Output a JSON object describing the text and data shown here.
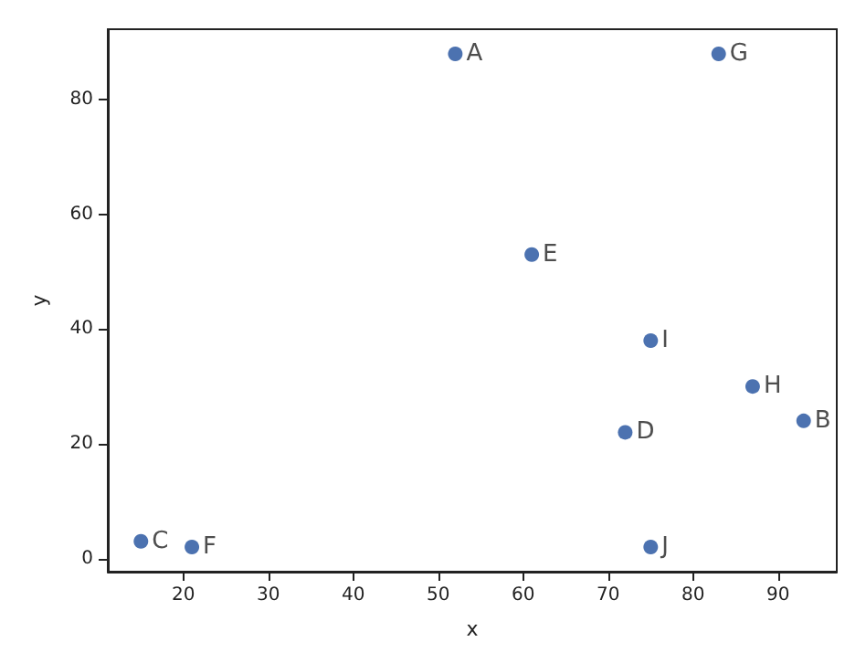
{
  "chart_data": {
    "type": "scatter",
    "xlabel": "x",
    "ylabel": "y",
    "x": [
      52,
      93,
      15,
      72,
      61,
      21,
      83,
      87,
      75,
      75
    ],
    "values": [
      88,
      24,
      3,
      22,
      53,
      2,
      88,
      30,
      38,
      2
    ],
    "color": "#4c72b0",
    "marker": "circle",
    "xlim": [
      11.1,
      96.9
    ],
    "xticks": [
      20,
      30,
      40,
      50,
      60,
      70,
      80,
      90
    ],
    "ylim": [
      -2.3,
      92.3
    ],
    "yticks": [
      0,
      20,
      40,
      60,
      80
    ],
    "annotations": [
      {
        "text": "A",
        "x": 52,
        "y": 88
      },
      {
        "text": "B",
        "x": 93,
        "y": 24
      },
      {
        "text": "C",
        "x": 15,
        "y": 3
      },
      {
        "text": "D",
        "x": 72,
        "y": 22
      },
      {
        "text": "E",
        "x": 61,
        "y": 53
      },
      {
        "text": "F",
        "x": 21,
        "y": 2
      },
      {
        "text": "G",
        "x": 83,
        "y": 88
      },
      {
        "text": "H",
        "x": 87,
        "y": 30
      },
      {
        "text": "I",
        "x": 75,
        "y": 38
      },
      {
        "text": "J",
        "x": 75,
        "y": 2
      }
    ]
  }
}
